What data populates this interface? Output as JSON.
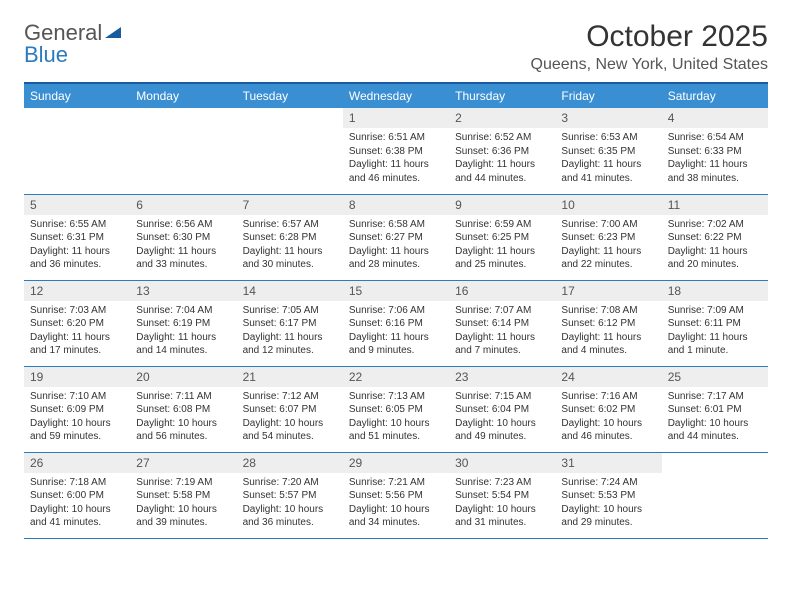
{
  "logo": {
    "word1": "General",
    "word2": "Blue"
  },
  "title": "October 2025",
  "location": "Queens, New York, United States",
  "weekdays": [
    "Sunday",
    "Monday",
    "Tuesday",
    "Wednesday",
    "Thursday",
    "Friday",
    "Saturday"
  ],
  "colors": {
    "header_bg": "#3a8fd3",
    "header_border": "#1a5a9e",
    "row_divider": "#2b7bbf",
    "daynum_bg": "#eeeeee",
    "text": "#333333",
    "logo_gray": "#555555",
    "logo_blue": "#2b7bbf"
  },
  "weeks": [
    [
      {
        "day": "",
        "empty": true
      },
      {
        "day": "",
        "empty": true
      },
      {
        "day": "",
        "empty": true
      },
      {
        "day": "1",
        "sunrise": "Sunrise: 6:51 AM",
        "sunset": "Sunset: 6:38 PM",
        "daylight": "Daylight: 11 hours and 46 minutes."
      },
      {
        "day": "2",
        "sunrise": "Sunrise: 6:52 AM",
        "sunset": "Sunset: 6:36 PM",
        "daylight": "Daylight: 11 hours and 44 minutes."
      },
      {
        "day": "3",
        "sunrise": "Sunrise: 6:53 AM",
        "sunset": "Sunset: 6:35 PM",
        "daylight": "Daylight: 11 hours and 41 minutes."
      },
      {
        "day": "4",
        "sunrise": "Sunrise: 6:54 AM",
        "sunset": "Sunset: 6:33 PM",
        "daylight": "Daylight: 11 hours and 38 minutes."
      }
    ],
    [
      {
        "day": "5",
        "sunrise": "Sunrise: 6:55 AM",
        "sunset": "Sunset: 6:31 PM",
        "daylight": "Daylight: 11 hours and 36 minutes."
      },
      {
        "day": "6",
        "sunrise": "Sunrise: 6:56 AM",
        "sunset": "Sunset: 6:30 PM",
        "daylight": "Daylight: 11 hours and 33 minutes."
      },
      {
        "day": "7",
        "sunrise": "Sunrise: 6:57 AM",
        "sunset": "Sunset: 6:28 PM",
        "daylight": "Daylight: 11 hours and 30 minutes."
      },
      {
        "day": "8",
        "sunrise": "Sunrise: 6:58 AM",
        "sunset": "Sunset: 6:27 PM",
        "daylight": "Daylight: 11 hours and 28 minutes."
      },
      {
        "day": "9",
        "sunrise": "Sunrise: 6:59 AM",
        "sunset": "Sunset: 6:25 PM",
        "daylight": "Daylight: 11 hours and 25 minutes."
      },
      {
        "day": "10",
        "sunrise": "Sunrise: 7:00 AM",
        "sunset": "Sunset: 6:23 PM",
        "daylight": "Daylight: 11 hours and 22 minutes."
      },
      {
        "day": "11",
        "sunrise": "Sunrise: 7:02 AM",
        "sunset": "Sunset: 6:22 PM",
        "daylight": "Daylight: 11 hours and 20 minutes."
      }
    ],
    [
      {
        "day": "12",
        "sunrise": "Sunrise: 7:03 AM",
        "sunset": "Sunset: 6:20 PM",
        "daylight": "Daylight: 11 hours and 17 minutes."
      },
      {
        "day": "13",
        "sunrise": "Sunrise: 7:04 AM",
        "sunset": "Sunset: 6:19 PM",
        "daylight": "Daylight: 11 hours and 14 minutes."
      },
      {
        "day": "14",
        "sunrise": "Sunrise: 7:05 AM",
        "sunset": "Sunset: 6:17 PM",
        "daylight": "Daylight: 11 hours and 12 minutes."
      },
      {
        "day": "15",
        "sunrise": "Sunrise: 7:06 AM",
        "sunset": "Sunset: 6:16 PM",
        "daylight": "Daylight: 11 hours and 9 minutes."
      },
      {
        "day": "16",
        "sunrise": "Sunrise: 7:07 AM",
        "sunset": "Sunset: 6:14 PM",
        "daylight": "Daylight: 11 hours and 7 minutes."
      },
      {
        "day": "17",
        "sunrise": "Sunrise: 7:08 AM",
        "sunset": "Sunset: 6:12 PM",
        "daylight": "Daylight: 11 hours and 4 minutes."
      },
      {
        "day": "18",
        "sunrise": "Sunrise: 7:09 AM",
        "sunset": "Sunset: 6:11 PM",
        "daylight": "Daylight: 11 hours and 1 minute."
      }
    ],
    [
      {
        "day": "19",
        "sunrise": "Sunrise: 7:10 AM",
        "sunset": "Sunset: 6:09 PM",
        "daylight": "Daylight: 10 hours and 59 minutes."
      },
      {
        "day": "20",
        "sunrise": "Sunrise: 7:11 AM",
        "sunset": "Sunset: 6:08 PM",
        "daylight": "Daylight: 10 hours and 56 minutes."
      },
      {
        "day": "21",
        "sunrise": "Sunrise: 7:12 AM",
        "sunset": "Sunset: 6:07 PM",
        "daylight": "Daylight: 10 hours and 54 minutes."
      },
      {
        "day": "22",
        "sunrise": "Sunrise: 7:13 AM",
        "sunset": "Sunset: 6:05 PM",
        "daylight": "Daylight: 10 hours and 51 minutes."
      },
      {
        "day": "23",
        "sunrise": "Sunrise: 7:15 AM",
        "sunset": "Sunset: 6:04 PM",
        "daylight": "Daylight: 10 hours and 49 minutes."
      },
      {
        "day": "24",
        "sunrise": "Sunrise: 7:16 AM",
        "sunset": "Sunset: 6:02 PM",
        "daylight": "Daylight: 10 hours and 46 minutes."
      },
      {
        "day": "25",
        "sunrise": "Sunrise: 7:17 AM",
        "sunset": "Sunset: 6:01 PM",
        "daylight": "Daylight: 10 hours and 44 minutes."
      }
    ],
    [
      {
        "day": "26",
        "sunrise": "Sunrise: 7:18 AM",
        "sunset": "Sunset: 6:00 PM",
        "daylight": "Daylight: 10 hours and 41 minutes."
      },
      {
        "day": "27",
        "sunrise": "Sunrise: 7:19 AM",
        "sunset": "Sunset: 5:58 PM",
        "daylight": "Daylight: 10 hours and 39 minutes."
      },
      {
        "day": "28",
        "sunrise": "Sunrise: 7:20 AM",
        "sunset": "Sunset: 5:57 PM",
        "daylight": "Daylight: 10 hours and 36 minutes."
      },
      {
        "day": "29",
        "sunrise": "Sunrise: 7:21 AM",
        "sunset": "Sunset: 5:56 PM",
        "daylight": "Daylight: 10 hours and 34 minutes."
      },
      {
        "day": "30",
        "sunrise": "Sunrise: 7:23 AM",
        "sunset": "Sunset: 5:54 PM",
        "daylight": "Daylight: 10 hours and 31 minutes."
      },
      {
        "day": "31",
        "sunrise": "Sunrise: 7:24 AM",
        "sunset": "Sunset: 5:53 PM",
        "daylight": "Daylight: 10 hours and 29 minutes."
      },
      {
        "day": "",
        "empty": true
      }
    ]
  ]
}
